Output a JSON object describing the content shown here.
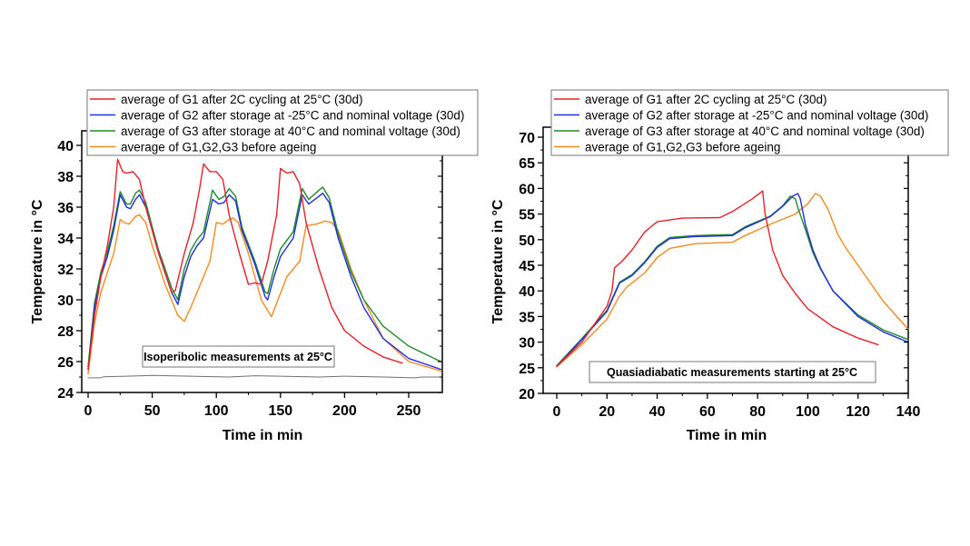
{
  "chart_data": [
    {
      "type": "line",
      "title": "",
      "xlabel": "Time in min",
      "ylabel": "Temperature in °C",
      "xlim": [
        -3,
        275
      ],
      "ylim": [
        24,
        41
      ],
      "xticks": [
        0,
        50,
        100,
        150,
        200,
        250
      ],
      "xtick_labels": [
        "0",
        "50",
        "100",
        "150",
        "200",
        "250"
      ],
      "yticks": [
        24,
        26,
        28,
        30,
        32,
        34,
        36,
        38,
        40
      ],
      "ytick_labels": [
        "24",
        "26",
        "28",
        "30",
        "32",
        "34",
        "36",
        "38",
        "40"
      ],
      "grid": false,
      "legend_position": "top",
      "annotation": "Isoperibolic measurements at 25°C",
      "series": [
        {
          "name": "average of G1 after 2C cycling at 25°C (30d)",
          "color": "#e8202a",
          "x": [
            0,
            5,
            10,
            15,
            20,
            23,
            27,
            30,
            35,
            40,
            45,
            55,
            65,
            68,
            75,
            82,
            87,
            90,
            95,
            100,
            105,
            110,
            118,
            125,
            130,
            135,
            140,
            147,
            150,
            155,
            160,
            165,
            170,
            180,
            190,
            200,
            215,
            230,
            245
          ],
          "y": [
            25.5,
            29,
            31.5,
            33.5,
            36,
            39.1,
            38.3,
            38.2,
            38.3,
            37.8,
            36,
            33,
            30.5,
            30.6,
            33,
            35,
            37.2,
            38.8,
            38.3,
            38.3,
            37.8,
            35.5,
            33,
            31,
            31.1,
            31,
            32.5,
            35.5,
            38.5,
            38.2,
            38.3,
            37.5,
            35,
            32,
            29.5,
            28,
            27,
            26.3,
            25.9
          ]
        },
        {
          "name": "average of G2 after storage at -25°C and nominal voltage (30d)",
          "color": "#1f2ee0",
          "x": [
            0,
            5,
            10,
            15,
            20,
            25,
            30,
            33,
            37,
            40,
            45,
            50,
            55,
            65,
            70,
            75,
            80,
            85,
            90,
            97,
            102,
            106,
            110,
            115,
            120,
            130,
            138,
            140,
            145,
            150,
            160,
            167,
            172,
            180,
            183,
            188,
            195,
            205,
            215,
            230,
            250,
            275
          ],
          "y": [
            25.5,
            29.5,
            31.5,
            32.8,
            34.5,
            36.8,
            36,
            35.9,
            36.5,
            36.8,
            36,
            34.5,
            33,
            30.5,
            29.7,
            31.5,
            32.8,
            33.5,
            34,
            36.5,
            36.2,
            36.3,
            36.8,
            36.4,
            34.5,
            32.3,
            30.2,
            30,
            31.5,
            32.8,
            34,
            36.8,
            36.2,
            36.7,
            36.9,
            36.3,
            34,
            31.5,
            29.5,
            27.5,
            26.2,
            25.5
          ]
        },
        {
          "name": "average of G3 after storage at 40°C and nominal voltage (30d)",
          "color": "#1e8a2a",
          "x": [
            0,
            5,
            10,
            15,
            20,
            25,
            30,
            33,
            37,
            40,
            45,
            50,
            55,
            65,
            70,
            75,
            80,
            85,
            90,
            97,
            102,
            106,
            110,
            115,
            120,
            130,
            138,
            140,
            145,
            150,
            160,
            167,
            172,
            180,
            183,
            188,
            195,
            205,
            215,
            230,
            250,
            275
          ],
          "y": [
            25.7,
            29.8,
            31.8,
            33.1,
            34.8,
            37,
            36.2,
            36.2,
            36.9,
            37.1,
            36.3,
            34.7,
            33.2,
            30.8,
            30,
            32,
            33.2,
            33.9,
            34.4,
            37.1,
            36.5,
            36.7,
            37.2,
            36.7,
            34.7,
            32.5,
            30.5,
            30.4,
            32,
            33.3,
            34.4,
            37.2,
            36.5,
            37.1,
            37.3,
            36.6,
            34.3,
            31.8,
            30,
            28.3,
            27,
            26
          ]
        },
        {
          "name": "average of G1,G2,G3 before ageing",
          "color": "#f58a1f",
          "x": [
            0,
            5,
            10,
            20,
            25,
            28,
            32,
            37,
            40,
            45,
            50,
            60,
            70,
            75,
            80,
            90,
            95,
            100,
            105,
            110,
            113,
            117,
            125,
            135,
            143,
            148,
            155,
            165,
            170,
            178,
            185,
            190,
            195,
            205,
            215,
            230,
            250,
            275
          ],
          "y": [
            25.2,
            28.5,
            30.5,
            33,
            35.2,
            35,
            34.9,
            35.4,
            35.5,
            35,
            33.5,
            31,
            29,
            28.6,
            29.5,
            31.5,
            32.5,
            35,
            34.9,
            35.2,
            35.3,
            35,
            33,
            30,
            28.9,
            30,
            31.5,
            32.5,
            34.8,
            34.9,
            35.1,
            35,
            34.5,
            32,
            30,
            27.5,
            26,
            25.4
          ]
        },
        {
          "name": "ambient reference (unlabeled)",
          "color": "#707070",
          "x": [
            0,
            10,
            12,
            30,
            50,
            80,
            110,
            130,
            150,
            180,
            200,
            230,
            255,
            260,
            275
          ],
          "y": [
            24.95,
            24.95,
            25.02,
            25.05,
            25.1,
            25.05,
            25.0,
            25.08,
            25.05,
            25.0,
            25.05,
            25.0,
            24.95,
            25.0,
            25.0
          ]
        }
      ]
    },
    {
      "type": "line",
      "title": "",
      "xlabel": "Time in min",
      "ylabel": "Temperature in °C",
      "xlim": [
        -5,
        140
      ],
      "ylim": [
        20,
        72
      ],
      "xticks": [
        0,
        20,
        40,
        60,
        80,
        100,
        120,
        140
      ],
      "xtick_labels": [
        "0",
        "20",
        "40",
        "60",
        "80",
        "100",
        "120",
        "140"
      ],
      "yticks": [
        20,
        25,
        30,
        35,
        40,
        45,
        50,
        55,
        60,
        65,
        70
      ],
      "ytick_labels": [
        "20",
        "25",
        "30",
        "35",
        "40",
        "45",
        "50",
        "55",
        "60",
        "65",
        "70"
      ],
      "grid": false,
      "legend_position": "top",
      "annotation": "Quasiadiabatic measurements starting at 25°C",
      "series": [
        {
          "name": "average of G1 after 2C cycling at 25°C (30d)",
          "color": "#e8202a",
          "x": [
            0,
            10,
            20,
            22,
            23,
            26,
            30,
            35,
            40,
            50,
            65,
            70,
            78,
            82,
            83,
            86,
            90,
            95,
            100,
            110,
            120,
            128
          ],
          "y": [
            25.3,
            30,
            37,
            40,
            44.5,
            45.8,
            48,
            51.5,
            53.5,
            54.2,
            54.3,
            55.5,
            58,
            59.5,
            55,
            48,
            43,
            39.5,
            36.5,
            33,
            30.8,
            29.5
          ]
        },
        {
          "name": "average of G2 after storage at -25°C and nominal voltage (30d)",
          "color": "#1f2ee0",
          "x": [
            0,
            10,
            20,
            25,
            30,
            35,
            40,
            45,
            55,
            70,
            75,
            85,
            90,
            94,
            96,
            97,
            99,
            102,
            105,
            110,
            120,
            130,
            140
          ],
          "y": [
            25.3,
            30.5,
            36,
            41.5,
            43,
            45.5,
            48.5,
            50.2,
            50.6,
            50.8,
            52.3,
            54.5,
            56.5,
            58.5,
            59,
            58,
            53,
            48,
            44.5,
            40,
            35,
            32,
            30
          ]
        },
        {
          "name": "average of G3 after storage at 40°C and nominal voltage (30d)",
          "color": "#1e8a2a",
          "x": [
            0,
            10,
            20,
            25,
            30,
            35,
            40,
            45,
            55,
            70,
            75,
            85,
            90,
            93,
            95,
            96,
            99,
            102,
            105,
            110,
            120,
            130,
            140
          ],
          "y": [
            25.4,
            30.7,
            36.2,
            41.7,
            43.2,
            45.7,
            48.7,
            50.4,
            50.8,
            51,
            52.5,
            54.6,
            56.6,
            58.5,
            58,
            56.3,
            52,
            47.5,
            44.3,
            40,
            35.3,
            32.4,
            30.5
          ]
        },
        {
          "name": "average of G1,G2,G3 before ageing",
          "color": "#f58a1f",
          "x": [
            0,
            10,
            20,
            25,
            28,
            35,
            40,
            45,
            55,
            70,
            75,
            85,
            95,
            100,
            103,
            105,
            108,
            112,
            115,
            120,
            130,
            140
          ],
          "y": [
            25.2,
            29.5,
            34.5,
            39,
            40.8,
            43.5,
            46.5,
            48.3,
            49.2,
            49.5,
            50.8,
            53,
            55,
            57,
            59,
            58.5,
            56,
            51,
            48.5,
            45,
            38,
            32.5
          ]
        }
      ]
    }
  ]
}
